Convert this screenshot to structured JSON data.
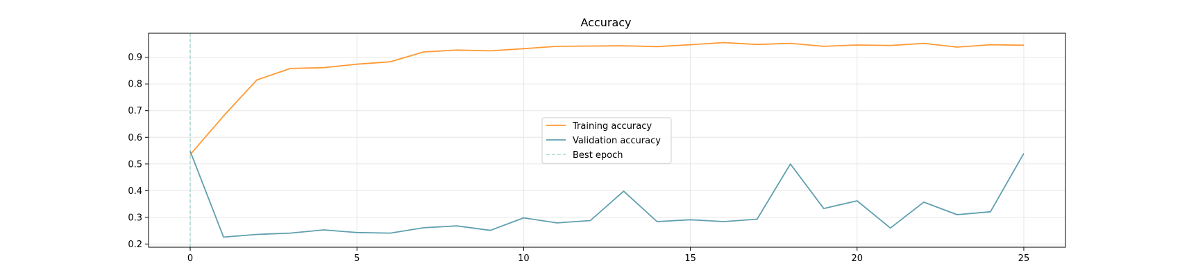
{
  "chart_data": {
    "type": "line",
    "title": "Accuracy",
    "xlabel": "",
    "ylabel": "",
    "xlim": [
      -1.25,
      26.25
    ],
    "ylim": [
      0.188,
      0.99
    ],
    "xticks": [
      0,
      5,
      10,
      15,
      20,
      25
    ],
    "yticks": [
      0.2,
      0.3,
      0.4,
      0.5,
      0.6,
      0.7,
      0.8,
      0.9
    ],
    "grid": true,
    "legend_position": "center",
    "x": [
      0,
      1,
      2,
      3,
      4,
      5,
      6,
      7,
      8,
      9,
      10,
      11,
      12,
      13,
      14,
      15,
      16,
      17,
      18,
      19,
      20,
      21,
      22,
      23,
      24,
      25
    ],
    "series": [
      {
        "name": "Training accuracy",
        "color": "#ff9933",
        "style": "solid",
        "values": [
          0.535,
          0.68,
          0.815,
          0.858,
          0.861,
          0.874,
          0.883,
          0.92,
          0.927,
          0.924,
          0.932,
          0.941,
          0.942,
          0.943,
          0.94,
          0.947,
          0.955,
          0.948,
          0.952,
          0.941,
          0.946,
          0.944,
          0.952,
          0.938,
          0.947,
          0.945
        ]
      },
      {
        "name": "Validation accuracy",
        "color": "#5f9faf",
        "style": "solid",
        "values": [
          0.548,
          0.226,
          0.236,
          0.241,
          0.253,
          0.243,
          0.241,
          0.261,
          0.268,
          0.251,
          0.298,
          0.279,
          0.288,
          0.398,
          0.284,
          0.291,
          0.284,
          0.293,
          0.5,
          0.333,
          0.362,
          0.26,
          0.357,
          0.31,
          0.321,
          0.54
        ]
      }
    ],
    "best_epoch": {
      "name": "Best epoch",
      "x": 0,
      "color": "#a8d5d1",
      "style": "dashed"
    }
  }
}
